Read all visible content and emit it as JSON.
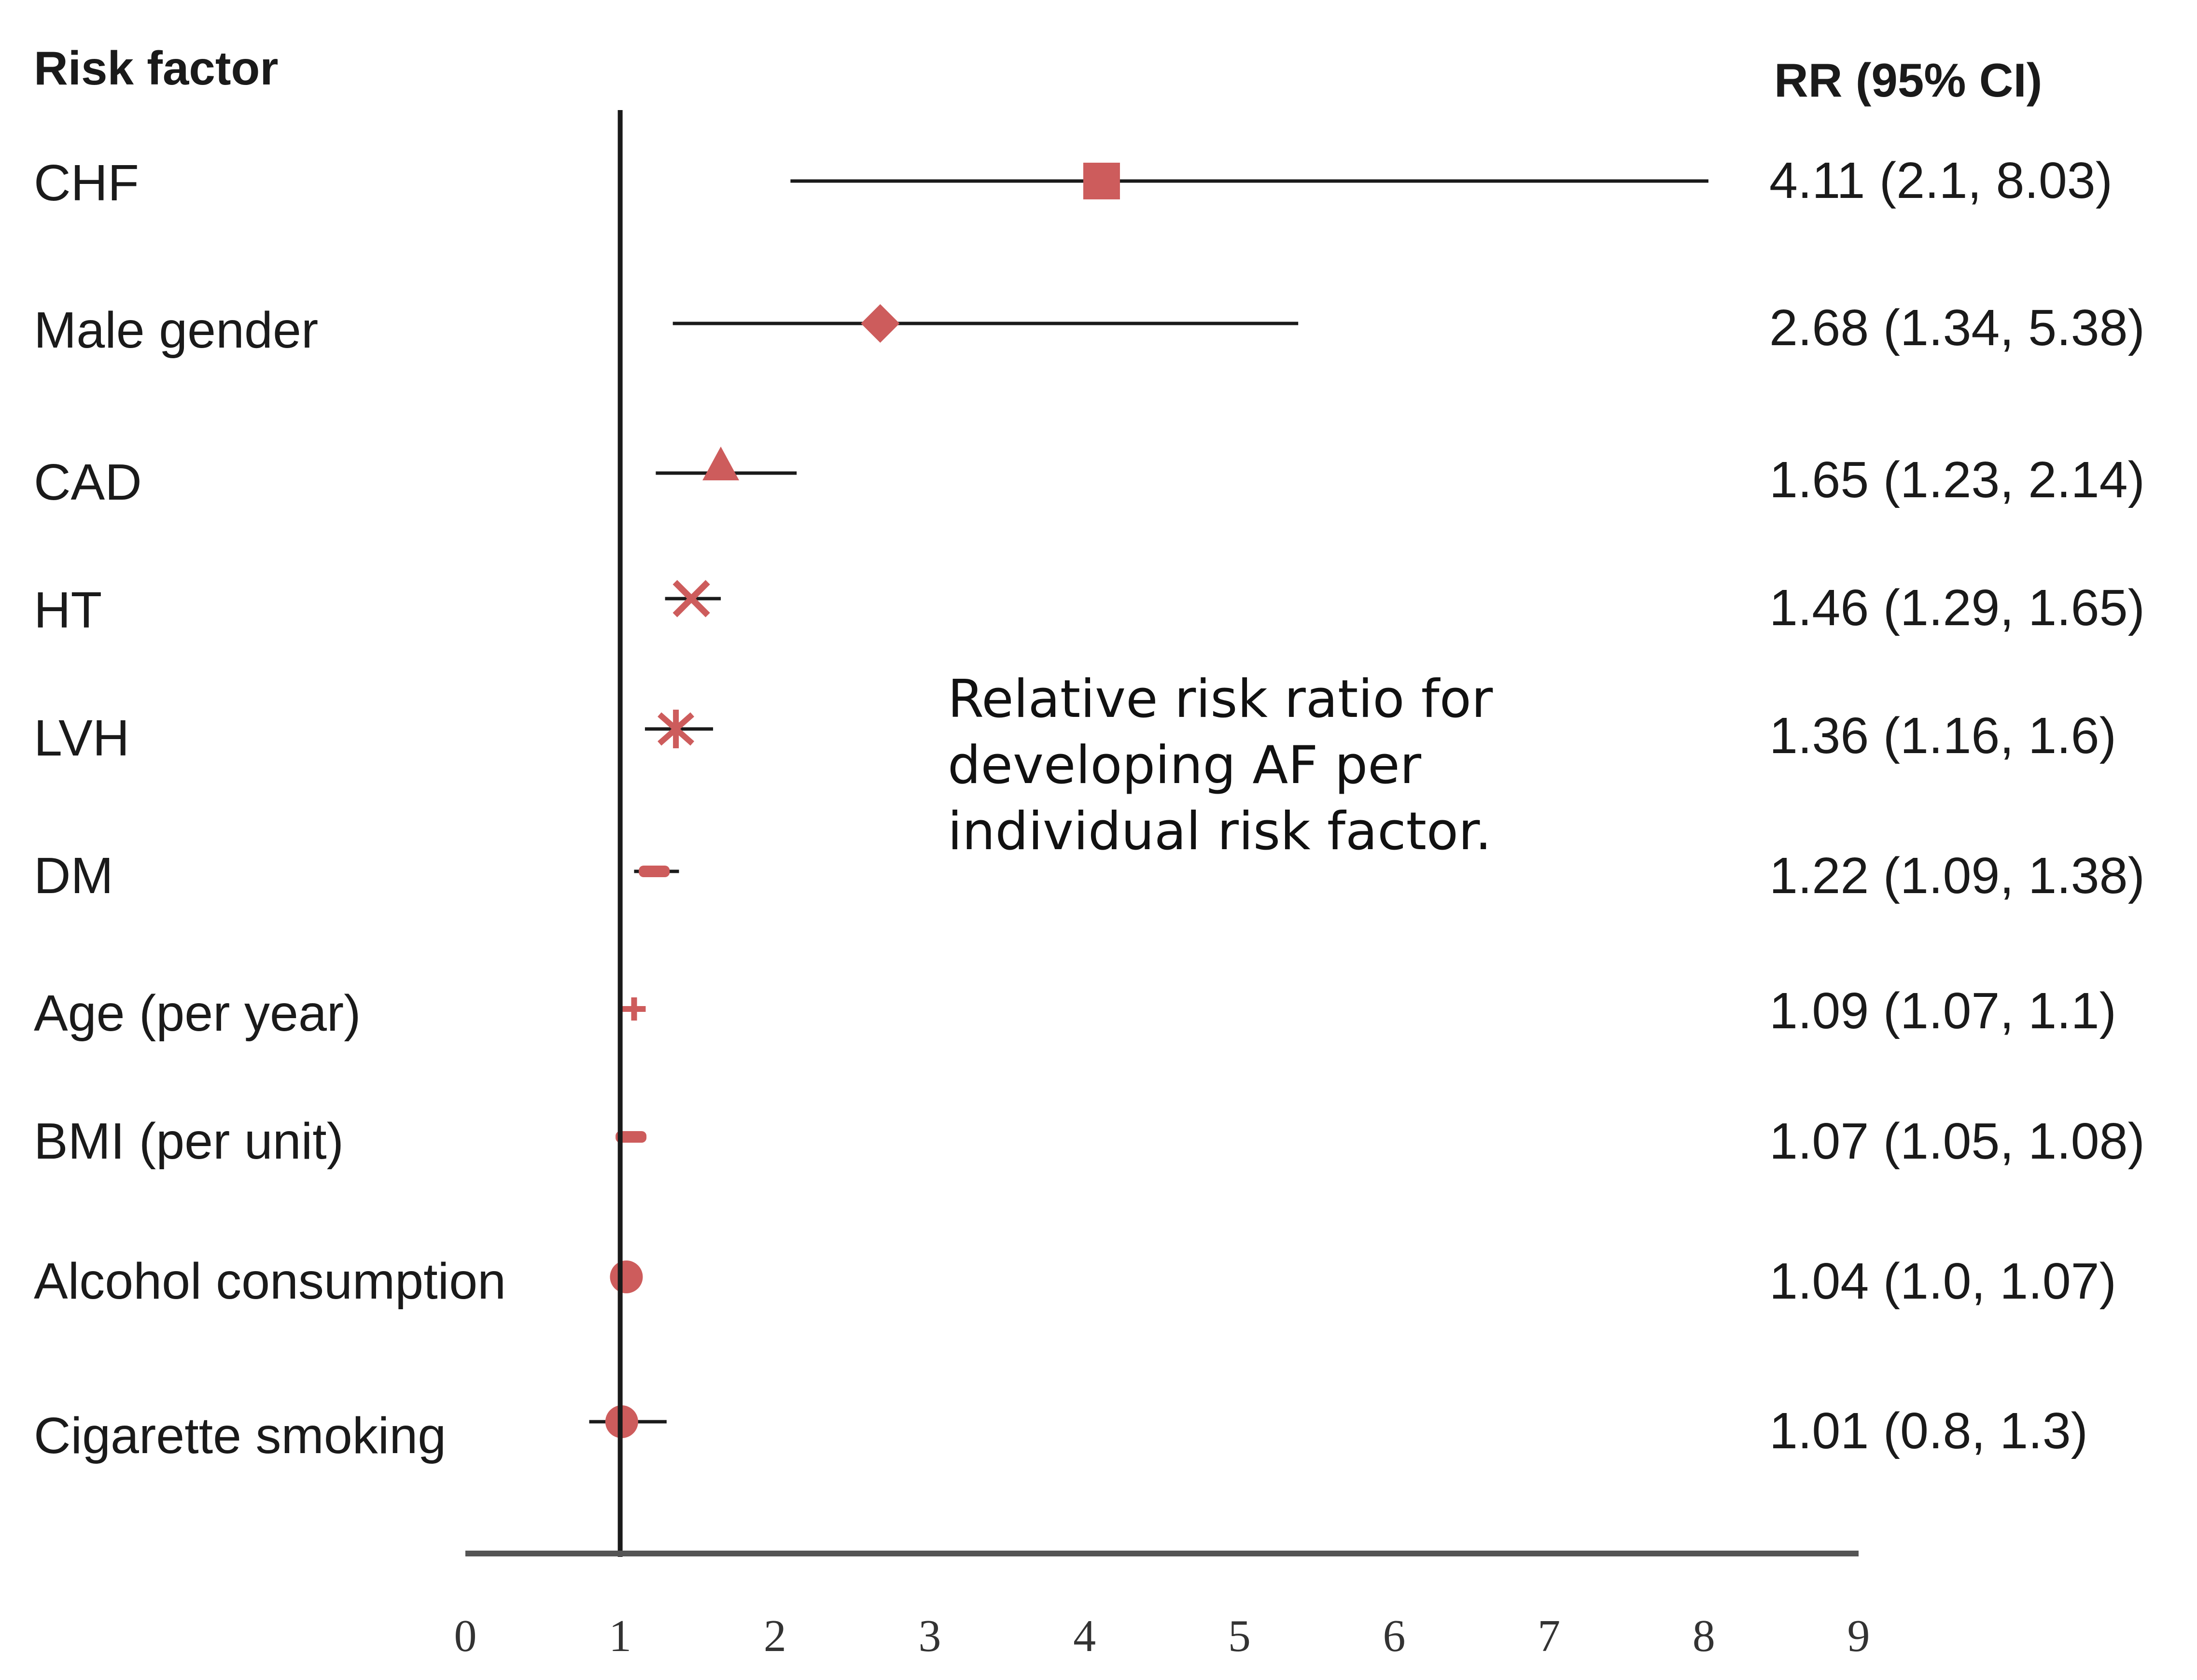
{
  "chart_data": {
    "type": "forest",
    "header_left": "Risk factor",
    "header_right": "RR (95% CI)",
    "annotation": [
      "Relative risk ratio for",
      "developing AF per",
      "individual risk factor."
    ],
    "xlim": [
      0,
      9
    ],
    "ticks": [
      "0",
      "1",
      "2",
      "3",
      "4",
      "5",
      "6",
      "7",
      "8",
      "9"
    ],
    "reference_line": 1,
    "marker_color": "#cd5c5c",
    "line_color": "#1a1a1a",
    "rows": [
      {
        "label": "CHF",
        "rr": 4.11,
        "lo": 2.1,
        "hi": 8.03,
        "ci_text": "4.11 (2.1, 8.03)",
        "marker": "square"
      },
      {
        "label": "Male gender",
        "rr": 2.68,
        "lo": 1.34,
        "hi": 5.38,
        "ci_text": "2.68 (1.34, 5.38)",
        "marker": "diamond"
      },
      {
        "label": "CAD",
        "rr": 1.65,
        "lo": 1.23,
        "hi": 2.14,
        "ci_text": "1.65 (1.23, 2.14)",
        "marker": "triangle"
      },
      {
        "label": "HT",
        "rr": 1.46,
        "lo": 1.29,
        "hi": 1.65,
        "ci_text": "1.46 (1.29, 1.65)",
        "marker": "x"
      },
      {
        "label": "LVH",
        "rr": 1.36,
        "lo": 1.16,
        "hi": 1.6,
        "ci_text": "1.36 (1.16, 1.6)",
        "marker": "asterisk"
      },
      {
        "label": "DM",
        "rr": 1.22,
        "lo": 1.09,
        "hi": 1.38,
        "ci_text": "1.22 (1.09, 1.38)",
        "marker": "dash"
      },
      {
        "label": "Age (per year)",
        "rr": 1.09,
        "lo": 1.07,
        "hi": 1.1,
        "ci_text": "1.09 (1.07, 1.1)",
        "marker": "plus"
      },
      {
        "label": "BMI (per unit)",
        "rr": 1.07,
        "lo": 1.05,
        "hi": 1.08,
        "ci_text": "1.07 (1.05, 1.08)",
        "marker": "dash"
      },
      {
        "label": "Alcohol consumption",
        "rr": 1.04,
        "lo": 1.0,
        "hi": 1.07,
        "ci_text": "1.04 (1.0, 1.07)",
        "marker": "circle"
      },
      {
        "label": "Cigarette smoking",
        "rr": 1.01,
        "lo": 0.8,
        "hi": 1.3,
        "ci_text": "1.01 (0.8, 1.3)",
        "marker": "circle"
      }
    ]
  }
}
